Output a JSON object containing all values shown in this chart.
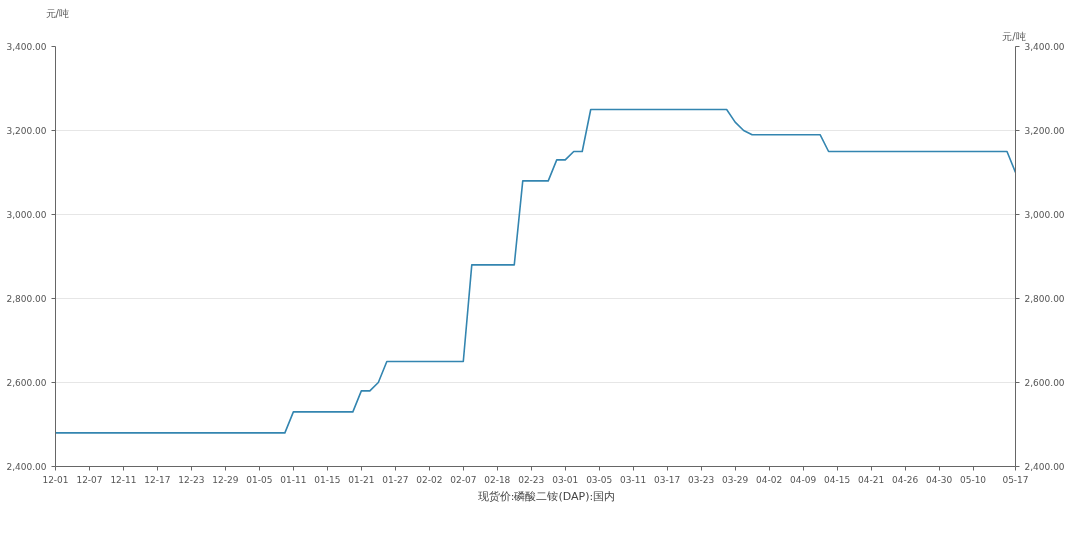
{
  "chart_data": {
    "type": "line",
    "ylabel": "元/吨",
    "y2label": "元/吨",
    "categories": [
      "12-01",
      null,
      null,
      null,
      "12-07",
      null,
      null,
      null,
      "12-11",
      null,
      null,
      null,
      "12-17",
      null,
      null,
      null,
      "12-23",
      null,
      null,
      null,
      "12-29",
      null,
      null,
      null,
      "01-05",
      null,
      null,
      null,
      "01-11",
      null,
      null,
      null,
      "01-15",
      null,
      null,
      null,
      "01-21",
      null,
      null,
      null,
      "01-27",
      null,
      null,
      null,
      "02-02",
      null,
      null,
      null,
      "02-07",
      null,
      null,
      null,
      "02-18",
      null,
      null,
      null,
      "02-23",
      null,
      null,
      null,
      "03-01",
      null,
      null,
      null,
      "03-05",
      null,
      null,
      null,
      "03-11",
      null,
      null,
      null,
      "03-17",
      null,
      null,
      null,
      "03-23",
      null,
      null,
      null,
      "03-29",
      null,
      null,
      null,
      "04-02",
      null,
      null,
      null,
      "04-09",
      null,
      null,
      null,
      "04-15",
      null,
      null,
      null,
      "04-21",
      null,
      null,
      null,
      "04-26",
      null,
      null,
      null,
      "04-30",
      null,
      null,
      null,
      "05-10",
      null,
      null,
      null,
      null,
      "05-17"
    ],
    "series": [
      {
        "name": "现货价:磷酸二铵(DAP):国内",
        "color": "#3385b0",
        "values": [
          2480,
          2480,
          2480,
          2480,
          2480,
          2480,
          2480,
          2480,
          2480,
          2480,
          2480,
          2480,
          2480,
          2480,
          2480,
          2480,
          2480,
          2480,
          2480,
          2480,
          2480,
          2480,
          2480,
          2480,
          2480,
          2480,
          2480,
          2480,
          2530,
          2530,
          2530,
          2530,
          2530,
          2530,
          2530,
          2530,
          2580,
          2580,
          2600,
          2650,
          2650,
          2650,
          2650,
          2650,
          2650,
          2650,
          2650,
          2650,
          2650,
          2880,
          2880,
          2880,
          2880,
          2880,
          2880,
          3080,
          3080,
          3080,
          3080,
          3130,
          3130,
          3150,
          3150,
          3250,
          3250,
          3250,
          3250,
          3250,
          3250,
          3250,
          3250,
          3250,
          3250,
          3250,
          3250,
          3250,
          3250,
          3250,
          3250,
          3250,
          3220,
          3200,
          3190,
          3190,
          3190,
          3190,
          3190,
          3190,
          3190,
          3190,
          3190,
          3150,
          3150,
          3150,
          3150,
          3150,
          3150,
          3150,
          3150,
          3150,
          3150,
          3150,
          3150,
          3150,
          3150,
          3150,
          3150,
          3150,
          3150,
          3150,
          3150,
          3150,
          3150,
          3100
        ]
      }
    ],
    "ylim": [
      2400,
      3400
    ],
    "yticks": [
      {
        "value": 2400,
        "label": "2,400.00"
      },
      {
        "value": 2600,
        "label": "2,600.00"
      },
      {
        "value": 2800,
        "label": "2,800.00"
      },
      {
        "value": 3000,
        "label": "3,000.00"
      },
      {
        "value": 3200,
        "label": "3,200.00"
      },
      {
        "value": 3400,
        "label": "3,400.00"
      }
    ],
    "y2lim": [
      2400,
      3400
    ],
    "y2ticks": [
      {
        "value": 2400,
        "label": "2,400.00"
      },
      {
        "value": 2600,
        "label": "2,600.00"
      },
      {
        "value": 2800,
        "label": "2,800.00"
      },
      {
        "value": 3000,
        "label": "3,000.00"
      },
      {
        "value": 3200,
        "label": "3,200.00"
      },
      {
        "value": 3400,
        "label": "3,400.00"
      }
    ],
    "grid": "y",
    "legend": "bottom",
    "marker": "none",
    "line_style": "solid"
  }
}
